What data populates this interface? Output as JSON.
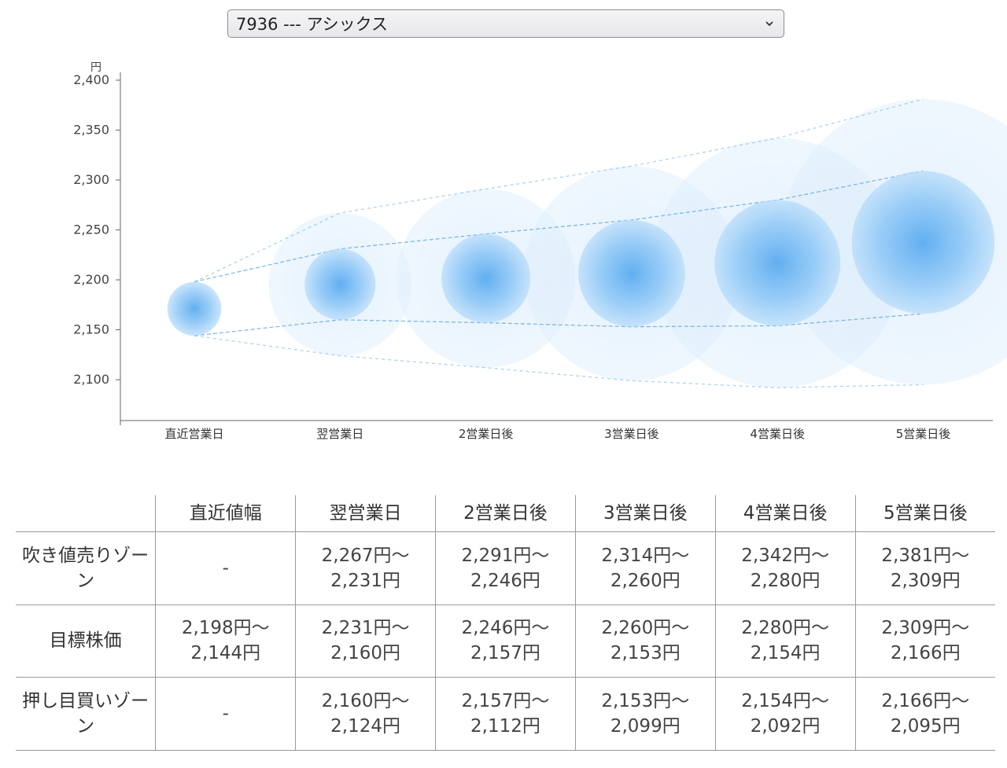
{
  "selector": {
    "value": "7936 --- アシックス"
  },
  "chart_data": {
    "type": "scatter",
    "yunit": "円",
    "ylim": [
      2060,
      2400
    ],
    "yticks": [
      2100,
      2150,
      2200,
      2250,
      2300,
      2350,
      2400
    ],
    "ytick_labels": [
      "2,100",
      "2,150",
      "2,200",
      "2,250",
      "2,300",
      "2,350",
      "2,400"
    ],
    "categories": [
      "直近営業日",
      "翌営業日",
      "2営業日後",
      "3営業日後",
      "4営業日後",
      "5営業日後"
    ],
    "points": [
      {
        "center": 2171,
        "target_high": 2198,
        "target_low": 2144,
        "outer_high": null,
        "outer_low": null
      },
      {
        "center": 2196,
        "target_high": 2231,
        "target_low": 2160,
        "outer_high": 2267,
        "outer_low": 2124
      },
      {
        "center": 2202,
        "target_high": 2246,
        "target_low": 2157,
        "outer_high": 2291,
        "outer_low": 2112
      },
      {
        "center": 2207,
        "target_high": 2260,
        "target_low": 2153,
        "outer_high": 2314,
        "outer_low": 2099
      },
      {
        "center": 2217,
        "target_high": 2280,
        "target_low": 2154,
        "outer_high": 2342,
        "outer_low": 2092
      },
      {
        "center": 2238,
        "target_high": 2309,
        "target_low": 2166,
        "outer_high": 2381,
        "outer_low": 2095
      }
    ],
    "colors": {
      "bubble": "#5aabf0",
      "line": "#6aaee0",
      "axis": "#666666"
    },
    "grid": false,
    "legend": "none"
  },
  "table": {
    "headers": [
      "",
      "直近値幅",
      "翌営業日",
      "2営業日後",
      "3営業日後",
      "4営業日後",
      "5営業日後"
    ],
    "rows": [
      {
        "label": [
          "吹き値売り",
          "ゾーン"
        ],
        "cells": [
          [
            "-"
          ],
          [
            "2,267円〜",
            "2,231円"
          ],
          [
            "2,291円〜",
            "2,246円"
          ],
          [
            "2,314円〜",
            "2,260円"
          ],
          [
            "2,342円〜",
            "2,280円"
          ],
          [
            "2,381円〜",
            "2,309円"
          ]
        ]
      },
      {
        "label": [
          "目標株価"
        ],
        "cells": [
          [
            "2,198円〜",
            "2,144円"
          ],
          [
            "2,231円〜",
            "2,160円"
          ],
          [
            "2,246円〜",
            "2,157円"
          ],
          [
            "2,260円〜",
            "2,153円"
          ],
          [
            "2,280円〜",
            "2,154円"
          ],
          [
            "2,309円〜",
            "2,166円"
          ]
        ]
      },
      {
        "label": [
          "押し目買い",
          "ゾーン"
        ],
        "cells": [
          [
            "-"
          ],
          [
            "2,160円〜",
            "2,124円"
          ],
          [
            "2,157円〜",
            "2,112円"
          ],
          [
            "2,153円〜",
            "2,099円"
          ],
          [
            "2,154円〜",
            "2,092円"
          ],
          [
            "2,166円〜",
            "2,095円"
          ]
        ]
      }
    ]
  }
}
